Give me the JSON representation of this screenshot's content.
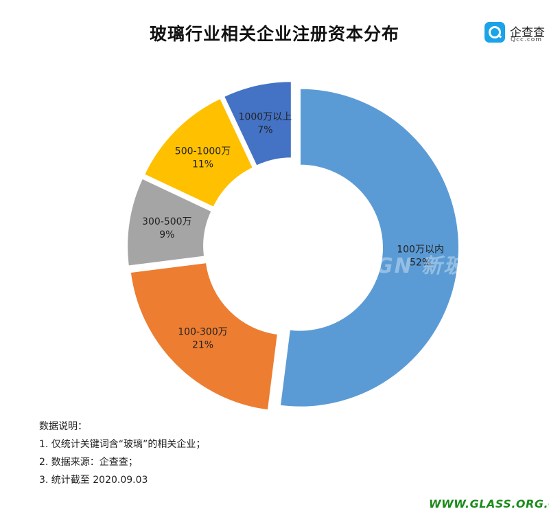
{
  "header": {
    "title": "玻璃行业相关企业注册资本分布"
  },
  "logo": {
    "name": "企查查",
    "domain": "Qcc.com",
    "color": "#1aa3e8"
  },
  "chart_data": {
    "type": "pie",
    "title": "玻璃行业相关企业注册资本分布",
    "donut": true,
    "slices": [
      {
        "label": "100万以内",
        "percent_label": "52%",
        "value": 52,
        "color": "#5b9bd5",
        "text_color": "#222222"
      },
      {
        "label": "100-300万",
        "percent_label": "21%",
        "value": 21,
        "color": "#ed7d31",
        "text_color": "#222222"
      },
      {
        "label": "300-500万",
        "percent_label": "9%",
        "value": 9,
        "color": "#a5a5a5",
        "text_color": "#222222"
      },
      {
        "label": "500-1000万",
        "percent_label": "11%",
        "value": 11,
        "color": "#ffc000",
        "text_color": "#222222"
      },
      {
        "label": "1000万以上",
        "percent_label": "7%",
        "value": 7,
        "color": "#4472c4",
        "text_color": "#222222"
      }
    ]
  },
  "watermark": {
    "text": "GN 新玻"
  },
  "notes": {
    "heading": "数据说明：",
    "items": [
      "1. 仅统计关键词含“玻璃”的相关企业；",
      "2. 数据来源：企查查；",
      "3. 统计截至 2020.09.03"
    ]
  },
  "footer": {
    "site": "WWW.GLASS.ORG.CN",
    "site_color": "#1a8a1a"
  }
}
